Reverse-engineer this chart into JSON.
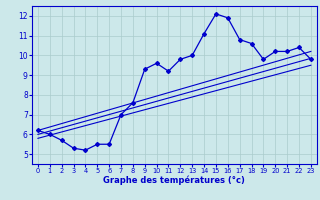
{
  "xlabel": "Graphe des températures (°c)",
  "bg_color": "#cce8ea",
  "line_color": "#0000cc",
  "grid_color": "#aacccc",
  "xlim": [
    -0.5,
    23.5
  ],
  "ylim": [
    4.5,
    12.5
  ],
  "xticks": [
    0,
    1,
    2,
    3,
    4,
    5,
    6,
    7,
    8,
    9,
    10,
    11,
    12,
    13,
    14,
    15,
    16,
    17,
    18,
    19,
    20,
    21,
    22,
    23
  ],
  "yticks": [
    5,
    6,
    7,
    8,
    9,
    10,
    11,
    12
  ],
  "hours": [
    0,
    1,
    2,
    3,
    4,
    5,
    6,
    7,
    8,
    9,
    10,
    11,
    12,
    13,
    14,
    15,
    16,
    17,
    18,
    19,
    20,
    21,
    22,
    23
  ],
  "temps": [
    6.2,
    6.0,
    5.7,
    5.3,
    5.2,
    5.5,
    5.5,
    7.0,
    7.6,
    9.3,
    9.6,
    9.2,
    9.8,
    10.0,
    11.1,
    12.1,
    11.9,
    10.8,
    10.6,
    9.8,
    10.2,
    10.2,
    10.4,
    9.8
  ],
  "reg_lines": [
    {
      "x": [
        0,
        23
      ],
      "y": [
        6.2,
        10.2
      ]
    },
    {
      "x": [
        0,
        23
      ],
      "y": [
        6.0,
        9.85
      ]
    },
    {
      "x": [
        0,
        23
      ],
      "y": [
        5.8,
        9.5
      ]
    }
  ]
}
